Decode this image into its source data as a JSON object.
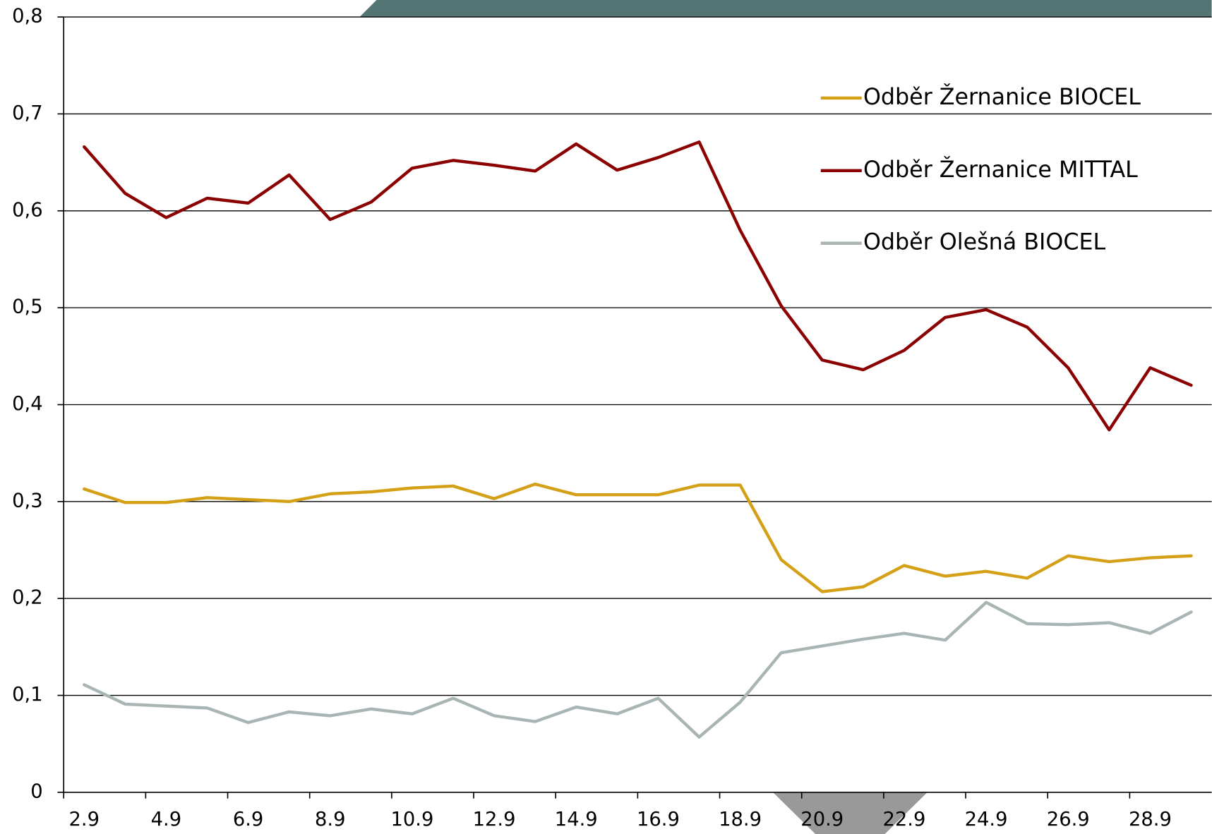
{
  "chart_data": {
    "type": "line",
    "categories": [
      "2.9",
      null,
      "4.9",
      null,
      "6.9",
      null,
      "8.9",
      null,
      "10.9",
      null,
      "12.9",
      null,
      "14.9",
      null,
      "16.9",
      null,
      "18.9",
      null,
      "20.9",
      null,
      "22.9",
      null,
      "24.9",
      null,
      "26.9",
      null,
      "28.9",
      null
    ],
    "series": [
      {
        "name": "Odběr Žernanice BIOCEL",
        "color": "#d4a017",
        "values": [
          0.313,
          0.299,
          0.299,
          0.304,
          0.302,
          0.3,
          0.308,
          0.31,
          0.314,
          0.316,
          0.303,
          0.318,
          0.307,
          0.307,
          0.307,
          0.317,
          0.317,
          0.24,
          0.207,
          0.212,
          0.234,
          0.223,
          0.228,
          0.221,
          0.244,
          0.238,
          0.242,
          0.244
        ]
      },
      {
        "name": "Odběr Žernanice MITTAL",
        "color": "#8b0000",
        "values": [
          0.666,
          0.618,
          0.593,
          0.613,
          0.608,
          0.637,
          0.591,
          0.609,
          0.644,
          0.652,
          0.647,
          0.641,
          0.669,
          0.642,
          0.655,
          0.671,
          0.58,
          0.502,
          0.446,
          0.436,
          0.456,
          0.49,
          0.498,
          0.48,
          0.438,
          0.374,
          0.438,
          0.42
        ]
      },
      {
        "name": "Odběr Olešná BIOCEL",
        "color": "#a9b5b5",
        "values": [
          0.111,
          0.091,
          0.089,
          0.087,
          0.072,
          0.083,
          0.079,
          0.086,
          0.081,
          0.097,
          0.079,
          0.073,
          0.088,
          0.081,
          0.097,
          0.057,
          0.093,
          0.144,
          0.151,
          0.158,
          0.164,
          0.157,
          0.196,
          0.174,
          0.173,
          0.175,
          0.164,
          0.186
        ]
      }
    ],
    "ylim": [
      0,
      0.8
    ],
    "yticks": [
      0,
      {
        "value": 0.1,
        "label": "0,1"
      },
      {
        "value": 0.2,
        "label": "0,2"
      },
      {
        "value": 0.3,
        "label": "0,3"
      },
      {
        "value": 0.4,
        "label": "0,4"
      },
      {
        "value": 0.5,
        "label": "0,5"
      },
      {
        "value": 0.6,
        "label": "0,6"
      },
      {
        "value": 0.7,
        "label": "0,7"
      },
      {
        "value": 0.8,
        "label": "0,8"
      }
    ],
    "grid": true,
    "legend": "upper right"
  }
}
